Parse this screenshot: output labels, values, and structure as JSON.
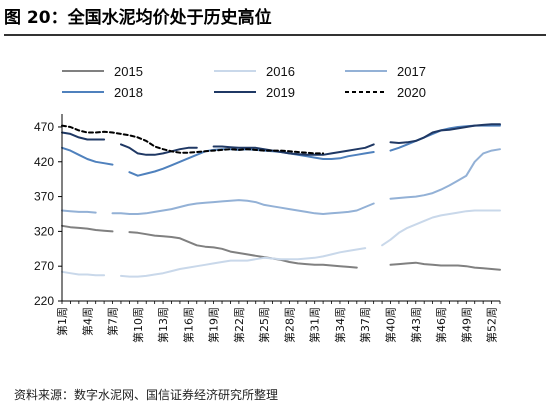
{
  "header": {
    "title": "图 20：全国水泥均价处于历史高位"
  },
  "footer": {
    "source": "资料来源：数字水泥网、国信证券经济研究所整理"
  },
  "colors": {
    "2015": "#808080",
    "2016": "#c9d8ea",
    "2017": "#93b1d6",
    "2018": "#4f81bd",
    "2019": "#1f3864",
    "2020": "#000000"
  },
  "chart_data": {
    "type": "line",
    "title": "",
    "xlabel": "",
    "ylabel": "",
    "ylim": [
      220,
      480
    ],
    "yticks": [
      220,
      270,
      320,
      370,
      420,
      470
    ],
    "x_ticks": [
      "第1周",
      "第4周",
      "第7周",
      "第10周",
      "第13周",
      "第16周",
      "第19周",
      "第22周",
      "第25周",
      "第28周",
      "第31周",
      "第34周",
      "第37周",
      "第40周",
      "第43周",
      "第46周",
      "第49周",
      "第52周"
    ],
    "grid": false,
    "legend_position": "top",
    "series": [
      {
        "name": "2015",
        "style": "solid",
        "values": [
          [
            1,
            328
          ],
          [
            2,
            326
          ],
          [
            3,
            325
          ],
          [
            4,
            324
          ],
          [
            5,
            322
          ],
          [
            6,
            321
          ],
          [
            7,
            320
          ],
          [
            9,
            319
          ],
          [
            10,
            318
          ],
          [
            11,
            316
          ],
          [
            12,
            314
          ],
          [
            13,
            313
          ],
          [
            14,
            312
          ],
          [
            15,
            310
          ],
          [
            16,
            305
          ],
          [
            17,
            300
          ],
          [
            18,
            298
          ],
          [
            19,
            297
          ],
          [
            20,
            295
          ],
          [
            21,
            291
          ],
          [
            22,
            289
          ],
          [
            23,
            287
          ],
          [
            24,
            285
          ],
          [
            25,
            283
          ],
          [
            26,
            281
          ],
          [
            27,
            279
          ],
          [
            28,
            276
          ],
          [
            29,
            274
          ],
          [
            30,
            273
          ],
          [
            31,
            272
          ],
          [
            32,
            272
          ],
          [
            33,
            271
          ],
          [
            34,
            270
          ],
          [
            35,
            269
          ],
          [
            36,
            268
          ],
          [
            38,
            268
          ],
          [
            40,
            272
          ],
          [
            41,
            273
          ],
          [
            42,
            274
          ],
          [
            43,
            275
          ],
          [
            44,
            273
          ],
          [
            45,
            272
          ],
          [
            46,
            271
          ],
          [
            47,
            271
          ],
          [
            48,
            271
          ],
          [
            49,
            270
          ],
          [
            50,
            268
          ],
          [
            51,
            267
          ],
          [
            52,
            266
          ],
          [
            53,
            265
          ]
        ]
      },
      {
        "name": "2016",
        "style": "solid",
        "values": [
          [
            1,
            262
          ],
          [
            2,
            260
          ],
          [
            3,
            258
          ],
          [
            4,
            258
          ],
          [
            5,
            257
          ],
          [
            6,
            257
          ],
          [
            8,
            256
          ],
          [
            9,
            255
          ],
          [
            10,
            255
          ],
          [
            11,
            256
          ],
          [
            12,
            258
          ],
          [
            13,
            260
          ],
          [
            14,
            263
          ],
          [
            15,
            266
          ],
          [
            16,
            268
          ],
          [
            17,
            270
          ],
          [
            18,
            272
          ],
          [
            19,
            274
          ],
          [
            20,
            276
          ],
          [
            21,
            278
          ],
          [
            22,
            278
          ],
          [
            23,
            278
          ],
          [
            24,
            280
          ],
          [
            25,
            282
          ],
          [
            26,
            281
          ],
          [
            27,
            280
          ],
          [
            28,
            280
          ],
          [
            29,
            280
          ],
          [
            30,
            281
          ],
          [
            31,
            282
          ],
          [
            32,
            284
          ],
          [
            33,
            287
          ],
          [
            34,
            290
          ],
          [
            35,
            292
          ],
          [
            36,
            294
          ],
          [
            37,
            296
          ],
          [
            39,
            300
          ],
          [
            40,
            308
          ],
          [
            41,
            318
          ],
          [
            42,
            325
          ],
          [
            43,
            330
          ],
          [
            44,
            335
          ],
          [
            45,
            340
          ],
          [
            46,
            343
          ],
          [
            47,
            345
          ],
          [
            48,
            347
          ],
          [
            49,
            349
          ],
          [
            50,
            350
          ],
          [
            51,
            350
          ],
          [
            52,
            350
          ],
          [
            53,
            350
          ]
        ]
      },
      {
        "name": "2017",
        "style": "solid",
        "values": [
          [
            1,
            350
          ],
          [
            2,
            349
          ],
          [
            3,
            348
          ],
          [
            4,
            348
          ],
          [
            5,
            347
          ],
          [
            7,
            346
          ],
          [
            8,
            346
          ],
          [
            9,
            345
          ],
          [
            10,
            345
          ],
          [
            11,
            346
          ],
          [
            12,
            348
          ],
          [
            13,
            350
          ],
          [
            14,
            352
          ],
          [
            15,
            355
          ],
          [
            16,
            358
          ],
          [
            17,
            360
          ],
          [
            18,
            361
          ],
          [
            19,
            362
          ],
          [
            20,
            363
          ],
          [
            21,
            364
          ],
          [
            22,
            365
          ],
          [
            23,
            364
          ],
          [
            24,
            362
          ],
          [
            25,
            358
          ],
          [
            26,
            356
          ],
          [
            27,
            354
          ],
          [
            28,
            352
          ],
          [
            29,
            350
          ],
          [
            30,
            348
          ],
          [
            31,
            346
          ],
          [
            32,
            345
          ],
          [
            33,
            346
          ],
          [
            34,
            347
          ],
          [
            35,
            348
          ],
          [
            36,
            350
          ],
          [
            37,
            355
          ],
          [
            38,
            360
          ],
          [
            40,
            367
          ],
          [
            41,
            368
          ],
          [
            42,
            369
          ],
          [
            43,
            370
          ],
          [
            44,
            372
          ],
          [
            45,
            375
          ],
          [
            46,
            380
          ],
          [
            47,
            386
          ],
          [
            48,
            393
          ],
          [
            49,
            400
          ],
          [
            50,
            420
          ],
          [
            51,
            432
          ],
          [
            52,
            436
          ],
          [
            53,
            438
          ]
        ]
      },
      {
        "name": "2018",
        "style": "solid",
        "values": [
          [
            1,
            440
          ],
          [
            2,
            436
          ],
          [
            3,
            430
          ],
          [
            4,
            424
          ],
          [
            5,
            420
          ],
          [
            6,
            418
          ],
          [
            7,
            416
          ],
          [
            9,
            405
          ],
          [
            10,
            400
          ],
          [
            11,
            403
          ],
          [
            12,
            406
          ],
          [
            13,
            410
          ],
          [
            14,
            415
          ],
          [
            15,
            420
          ],
          [
            16,
            425
          ],
          [
            17,
            430
          ],
          [
            18,
            435
          ],
          [
            19,
            437
          ],
          [
            20,
            438
          ],
          [
            21,
            438
          ],
          [
            22,
            437
          ],
          [
            23,
            438
          ],
          [
            24,
            437
          ],
          [
            25,
            436
          ],
          [
            26,
            435
          ],
          [
            27,
            434
          ],
          [
            28,
            432
          ],
          [
            29,
            430
          ],
          [
            30,
            428
          ],
          [
            31,
            426
          ],
          [
            32,
            424
          ],
          [
            33,
            424
          ],
          [
            34,
            425
          ],
          [
            35,
            428
          ],
          [
            36,
            430
          ],
          [
            37,
            432
          ],
          [
            38,
            434
          ],
          [
            40,
            436
          ],
          [
            41,
            440
          ],
          [
            42,
            445
          ],
          [
            43,
            450
          ],
          [
            44,
            455
          ],
          [
            45,
            460
          ],
          [
            46,
            465
          ],
          [
            47,
            468
          ],
          [
            48,
            470
          ],
          [
            49,
            471
          ],
          [
            50,
            472
          ],
          [
            51,
            472
          ],
          [
            52,
            472
          ],
          [
            53,
            472
          ]
        ]
      },
      {
        "name": "2019",
        "style": "solid",
        "values": [
          [
            1,
            462
          ],
          [
            2,
            460
          ],
          [
            3,
            455
          ],
          [
            4,
            452
          ],
          [
            5,
            452
          ],
          [
            6,
            452
          ],
          [
            8,
            445
          ],
          [
            9,
            440
          ],
          [
            10,
            432
          ],
          [
            11,
            430
          ],
          [
            12,
            430
          ],
          [
            13,
            432
          ],
          [
            14,
            435
          ],
          [
            15,
            438
          ],
          [
            16,
            440
          ],
          [
            17,
            440
          ],
          [
            19,
            442
          ],
          [
            20,
            442
          ],
          [
            21,
            441
          ],
          [
            22,
            440
          ],
          [
            23,
            440
          ],
          [
            24,
            440
          ],
          [
            25,
            438
          ],
          [
            26,
            436
          ],
          [
            27,
            434
          ],
          [
            28,
            432
          ],
          [
            29,
            431
          ],
          [
            30,
            430
          ],
          [
            31,
            430
          ],
          [
            32,
            430
          ],
          [
            33,
            432
          ],
          [
            34,
            434
          ],
          [
            35,
            436
          ],
          [
            36,
            438
          ],
          [
            37,
            440
          ],
          [
            38,
            445
          ],
          [
            40,
            448
          ],
          [
            41,
            447
          ],
          [
            42,
            448
          ],
          [
            43,
            450
          ],
          [
            44,
            455
          ],
          [
            45,
            462
          ],
          [
            46,
            465
          ],
          [
            47,
            466
          ],
          [
            48,
            468
          ],
          [
            49,
            470
          ],
          [
            50,
            472
          ],
          [
            51,
            473
          ],
          [
            52,
            474
          ],
          [
            53,
            474
          ]
        ]
      },
      {
        "name": "2020",
        "style": "dashed",
        "values": [
          [
            1,
            472
          ],
          [
            2,
            470
          ],
          [
            3,
            465
          ],
          [
            4,
            462
          ],
          [
            5,
            462
          ],
          [
            6,
            463
          ],
          [
            7,
            462
          ],
          [
            8,
            460
          ],
          [
            9,
            458
          ],
          [
            10,
            455
          ],
          [
            11,
            450
          ],
          [
            12,
            442
          ],
          [
            13,
            438
          ],
          [
            14,
            435
          ],
          [
            15,
            433
          ],
          [
            16,
            433
          ],
          [
            17,
            434
          ],
          [
            18,
            435
          ],
          [
            19,
            436
          ],
          [
            20,
            437
          ],
          [
            21,
            438
          ],
          [
            22,
            437
          ],
          [
            23,
            438
          ],
          [
            24,
            437
          ],
          [
            25,
            436
          ],
          [
            26,
            436
          ],
          [
            27,
            436
          ],
          [
            28,
            435
          ],
          [
            29,
            434
          ],
          [
            30,
            433
          ],
          [
            31,
            432
          ],
          [
            32,
            432
          ]
        ]
      }
    ]
  }
}
